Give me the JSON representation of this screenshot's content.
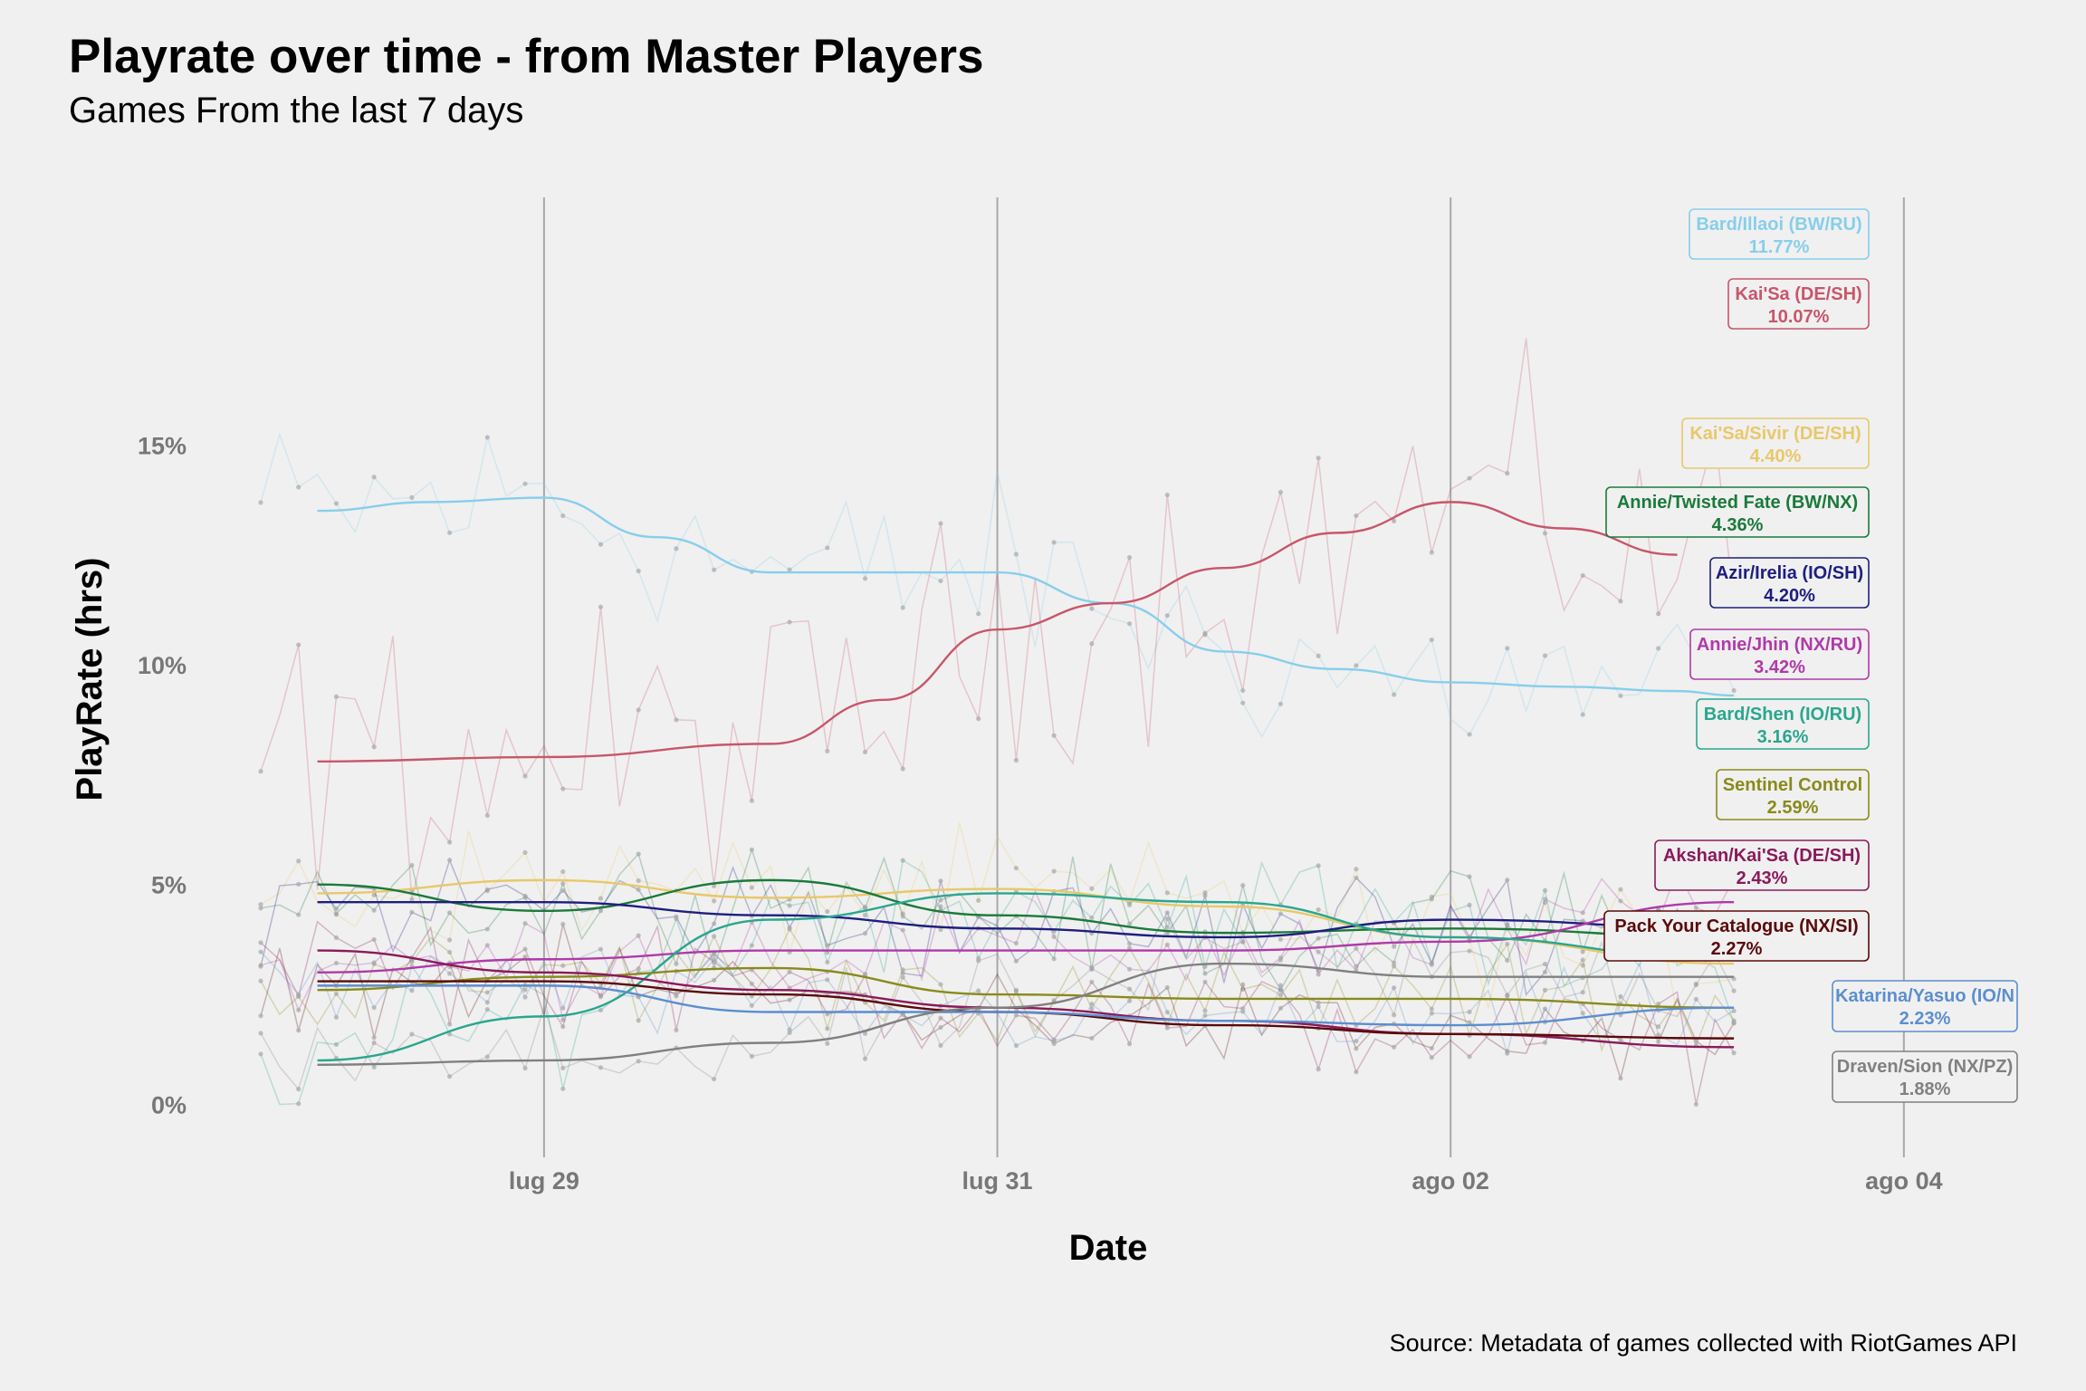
{
  "chart_data": {
    "type": "line",
    "title": "Playrate over time - from Master Players",
    "subtitle": "Games From the last 7 days",
    "xlabel": "Date",
    "ylabel": "PlayRate (hrs)",
    "source": "Source: Metadata of games collected with RiotGames API",
    "x_ticks": [
      {
        "label": "lug 29",
        "date": "2023-07-29"
      },
      {
        "label": "lug 31",
        "date": "2023-07-31"
      },
      {
        "label": "ago 02",
        "date": "2023-08-02"
      },
      {
        "label": "ago 04",
        "date": "2023-08-04"
      }
    ],
    "y_ticks": [
      {
        "label": "0%",
        "value": 0
      },
      {
        "label": "5%",
        "value": 5
      },
      {
        "label": "10%",
        "value": 10
      },
      {
        "label": "15%",
        "value": 15
      }
    ],
    "xlim": [
      "2023-07-27 18:00",
      "2023-08-04 12:00"
    ],
    "ylim": [
      -1,
      21
    ],
    "grid": "vertical lines at x ticks",
    "series": [
      {
        "name": "Bard/Illaoi (BW/RU)",
        "final": "11.77%",
        "color": "#87ceeb",
        "trend": [
          [
            "2023-07-28 00:00",
            13.5
          ],
          [
            "2023-07-28 12:00",
            13.7
          ],
          [
            "2023-07-29 00:00",
            13.8
          ],
          [
            "2023-07-29 12:00",
            12.9
          ],
          [
            "2023-07-30 00:00",
            12.1
          ],
          [
            "2023-07-30 12:00",
            12.1
          ],
          [
            "2023-07-31 00:00",
            12.1
          ],
          [
            "2023-07-31 12:00",
            11.4
          ],
          [
            "2023-08-01 00:00",
            10.3
          ],
          [
            "2023-08-01 12:00",
            9.9
          ],
          [
            "2023-08-02 00:00",
            9.6
          ],
          [
            "2023-08-02 12:00",
            9.5
          ],
          [
            "2023-08-03 00:00",
            9.4
          ],
          [
            "2023-08-03 06:00",
            9.3
          ]
        ],
        "raw_mean": 12.5,
        "raw_sd": 1.6
      },
      {
        "name": "Kai'Sa (DE/SH)",
        "final": "10.07%",
        "color": "#c8566a",
        "trend": [
          [
            "2023-07-28 00:00",
            7.8
          ],
          [
            "2023-07-29 00:00",
            7.9
          ],
          [
            "2023-07-30 00:00",
            8.2
          ],
          [
            "2023-07-30 12:00",
            9.2
          ],
          [
            "2023-07-31 00:00",
            10.8
          ],
          [
            "2023-07-31 12:00",
            11.4
          ],
          [
            "2023-08-01 00:00",
            12.2
          ],
          [
            "2023-08-01 12:00",
            13.0
          ],
          [
            "2023-08-02 00:00",
            13.7
          ],
          [
            "2023-08-02 12:00",
            13.1
          ],
          [
            "2023-08-03 00:00",
            12.5
          ]
        ],
        "raw_mean": 10.5,
        "raw_sd": 2.4
      },
      {
        "name": "Kai'Sa/Sivir (DE/SH)",
        "final": "4.40%",
        "color": "#e8c86a",
        "trend": [
          [
            "2023-07-28 00:00",
            4.8
          ],
          [
            "2023-07-29 00:00",
            5.1
          ],
          [
            "2023-07-30 00:00",
            4.7
          ],
          [
            "2023-07-31 00:00",
            4.9
          ],
          [
            "2023-08-01 00:00",
            4.5
          ],
          [
            "2023-08-02 00:00",
            3.8
          ],
          [
            "2023-08-03 06:00",
            3.2
          ]
        ],
        "raw_mean": 4.4,
        "raw_sd": 1.0
      },
      {
        "name": "Annie/Twisted Fate (BW/NX)",
        "final": "4.36%",
        "color": "#1a7a3a",
        "trend": [
          [
            "2023-07-28 00:00",
            5.0
          ],
          [
            "2023-07-29 00:00",
            4.4
          ],
          [
            "2023-07-30 00:00",
            5.1
          ],
          [
            "2023-07-31 00:00",
            4.3
          ],
          [
            "2023-08-01 00:00",
            3.9
          ],
          [
            "2023-08-02 00:00",
            4.0
          ],
          [
            "2023-08-03 06:00",
            3.8
          ]
        ],
        "raw_mean": 4.3,
        "raw_sd": 1.0
      },
      {
        "name": "Azir/Irelia (IO/SH)",
        "final": "4.20%",
        "color": "#1e1e80",
        "trend": [
          [
            "2023-07-28 00:00",
            4.6
          ],
          [
            "2023-07-29 00:00",
            4.6
          ],
          [
            "2023-07-30 00:00",
            4.3
          ],
          [
            "2023-07-31 00:00",
            4.0
          ],
          [
            "2023-08-01 00:00",
            3.8
          ],
          [
            "2023-08-02 00:00",
            4.2
          ],
          [
            "2023-08-03 06:00",
            4.0
          ]
        ],
        "raw_mean": 4.2,
        "raw_sd": 1.0
      },
      {
        "name": "Annie/Jhin (NX/RU)",
        "final": "3.42%",
        "color": "#b03aa8",
        "trend": [
          [
            "2023-07-28 00:00",
            3.0
          ],
          [
            "2023-07-29 00:00",
            3.3
          ],
          [
            "2023-07-30 00:00",
            3.5
          ],
          [
            "2023-07-31 00:00",
            3.5
          ],
          [
            "2023-08-01 00:00",
            3.5
          ],
          [
            "2023-08-02 00:00",
            3.7
          ],
          [
            "2023-08-03 06:00",
            4.6
          ]
        ],
        "raw_mean": 3.4,
        "raw_sd": 0.9
      },
      {
        "name": "Bard/Shen (IO/RU)",
        "final": "3.16%",
        "color": "#2aa68e",
        "trend": [
          [
            "2023-07-28 00:00",
            1.0
          ],
          [
            "2023-07-29 00:00",
            2.0
          ],
          [
            "2023-07-30 00:00",
            4.2
          ],
          [
            "2023-07-31 00:00",
            4.8
          ],
          [
            "2023-08-01 00:00",
            4.6
          ],
          [
            "2023-08-02 00:00",
            3.8
          ],
          [
            "2023-08-03 06:00",
            3.3
          ]
        ],
        "raw_mean": 3.3,
        "raw_sd": 1.1
      },
      {
        "name": "Sentinel Control",
        "final": "2.59%",
        "color": "#8a8a1a",
        "trend": [
          [
            "2023-07-28 00:00",
            2.6
          ],
          [
            "2023-07-29 00:00",
            2.9
          ],
          [
            "2023-07-30 00:00",
            3.1
          ],
          [
            "2023-07-31 00:00",
            2.5
          ],
          [
            "2023-08-01 00:00",
            2.4
          ],
          [
            "2023-08-02 00:00",
            2.4
          ],
          [
            "2023-08-03 06:00",
            2.2
          ]
        ],
        "raw_mean": 2.6,
        "raw_sd": 0.9
      },
      {
        "name": "Akshan/Kai'Sa (DE/SH)",
        "final": "2.43%",
        "color": "#8a1a5a",
        "trend": [
          [
            "2023-07-28 00:00",
            3.5
          ],
          [
            "2023-07-29 00:00",
            3.0
          ],
          [
            "2023-07-30 00:00",
            2.6
          ],
          [
            "2023-07-31 00:00",
            2.2
          ],
          [
            "2023-08-01 00:00",
            1.9
          ],
          [
            "2023-08-02 00:00",
            1.6
          ],
          [
            "2023-08-03 06:00",
            1.3
          ]
        ],
        "raw_mean": 2.4,
        "raw_sd": 0.9
      },
      {
        "name": "Pack Your Catalogue (NX/SI)",
        "final": "2.27%",
        "color": "#5a0a0a",
        "trend": [
          [
            "2023-07-28 00:00",
            2.8
          ],
          [
            "2023-07-29 00:00",
            2.8
          ],
          [
            "2023-07-30 00:00",
            2.5
          ],
          [
            "2023-07-31 00:00",
            2.1
          ],
          [
            "2023-08-01 00:00",
            1.8
          ],
          [
            "2023-08-02 00:00",
            1.6
          ],
          [
            "2023-08-03 06:00",
            1.5
          ]
        ],
        "raw_mean": 2.3,
        "raw_sd": 0.8
      },
      {
        "name": "Katarina/Yasuo (IO/N",
        "final": "2.23%",
        "color": "#5b8ed0",
        "trend": [
          [
            "2023-07-28 00:00",
            2.7
          ],
          [
            "2023-07-29 00:00",
            2.7
          ],
          [
            "2023-07-30 00:00",
            2.1
          ],
          [
            "2023-07-31 00:00",
            2.1
          ],
          [
            "2023-08-01 00:00",
            1.9
          ],
          [
            "2023-08-02 00:00",
            1.8
          ],
          [
            "2023-08-03 06:00",
            2.2
          ]
        ],
        "raw_mean": 2.2,
        "raw_sd": 0.8
      },
      {
        "name": "Draven/Sion (NX/PZ)",
        "final": "1.88%",
        "color": "#808080",
        "trend": [
          [
            "2023-07-28 00:00",
            0.9
          ],
          [
            "2023-07-29 00:00",
            1.0
          ],
          [
            "2023-07-30 00:00",
            1.4
          ],
          [
            "2023-07-31 00:00",
            2.2
          ],
          [
            "2023-08-01 00:00",
            3.2
          ],
          [
            "2023-08-02 00:00",
            2.9
          ],
          [
            "2023-08-03 06:00",
            2.9
          ]
        ],
        "raw_mean": 1.9,
        "raw_sd": 0.9
      }
    ]
  }
}
